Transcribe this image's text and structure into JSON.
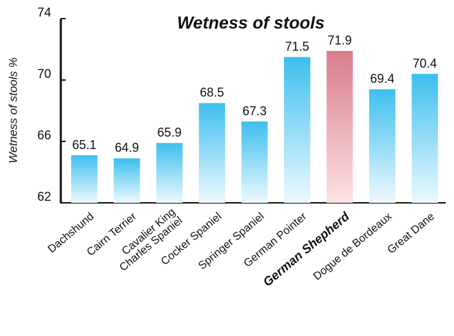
{
  "chart_data": {
    "type": "bar",
    "title": "Wetness of stools",
    "y_label": "Wetness of stools %",
    "categories": [
      "Dachshund",
      "Cairn Terrier",
      "Cavalier King\nCharles Spaniel",
      "Cocker Spaniel",
      "Springer Spaniel",
      "German Pointer",
      "German Shepherd",
      "Dogue de Bordeaux",
      "Great Dane"
    ],
    "values": [
      65.1,
      64.9,
      65.9,
      68.5,
      67.3,
      71.5,
      71.9,
      69.4,
      70.4
    ],
    "color": "#3dbfee",
    "highlight": "German Shepherd",
    "highlight_color": "#d97c8c",
    "ylim": [
      62,
      74
    ],
    "yticks": [
      62,
      66,
      70,
      74
    ]
  }
}
